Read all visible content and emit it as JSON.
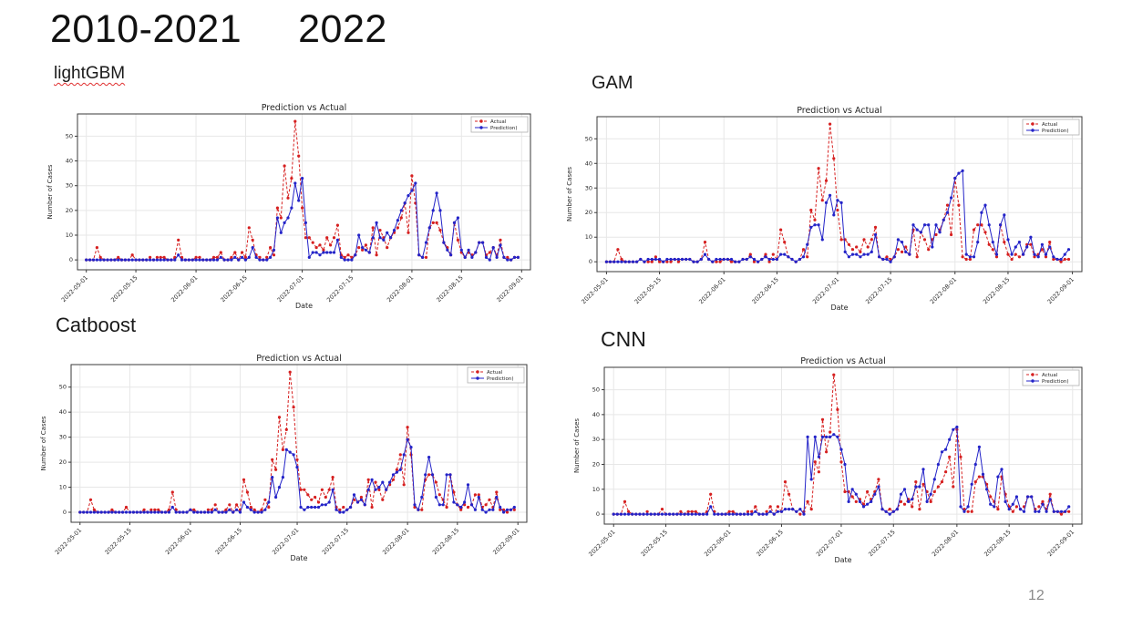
{
  "header": {
    "period_label": "2010-2021",
    "year_label": "2022"
  },
  "footer": {
    "page_number": "12"
  },
  "chart_data": {
    "type": "line",
    "title": "Prediction vs Actual",
    "xlabel": "Date",
    "ylabel": "Number of Cases",
    "grid": true,
    "legend_position": "upper right",
    "ylim": [
      -4,
      59
    ],
    "yticks": [
      0,
      10,
      20,
      30,
      40,
      50
    ],
    "x_tick_labels": [
      "2022-05-01",
      "2022-05-15",
      "2022-06-01",
      "2022-06-15",
      "2022-07-01",
      "2022-07-15",
      "2022-08-01",
      "2022-08-15",
      "2022-09-01"
    ],
    "x_tick_positions": [
      0,
      14,
      31,
      45,
      61,
      75,
      92,
      106,
      123
    ],
    "x_range_days": [
      -2.5,
      125.5
    ],
    "series_legend": [
      {
        "name": "Actual",
        "color": "#d62020",
        "line": "dashed",
        "marker": "circle"
      },
      {
        "name": "Prediction)",
        "color": "#2323c8",
        "line": "solid",
        "marker": "circle"
      }
    ],
    "actual": [
      0,
      0,
      0,
      5,
      1,
      0,
      0,
      0,
      0,
      1,
      0,
      0,
      0,
      2,
      0,
      0,
      0,
      0,
      1,
      0,
      1,
      1,
      1,
      0,
      0,
      1,
      8,
      1,
      0,
      0,
      0,
      1,
      1,
      0,
      0,
      0,
      1,
      1,
      3,
      0,
      0,
      1,
      3,
      0,
      3,
      1,
      13,
      8,
      2,
      1,
      0,
      1,
      5,
      2,
      21,
      17,
      38,
      25,
      33,
      56,
      42,
      21,
      9,
      9,
      7,
      5,
      6,
      4,
      9,
      6,
      9,
      14,
      2,
      1,
      2,
      1,
      2,
      5,
      4,
      6,
      3,
      13,
      2,
      12,
      9,
      5,
      9,
      11,
      13,
      17,
      23,
      11,
      34,
      23,
      2,
      1,
      1,
      13,
      15,
      15,
      12,
      7,
      5,
      2,
      15,
      8,
      3,
      1,
      3,
      2,
      3,
      7,
      7,
      2,
      3,
      5,
      2,
      8,
      1,
      1,
      0,
      1,
      1
    ],
    "panels": [
      {
        "label": "lightGBM",
        "prediction": [
          0,
          0,
          0,
          0,
          0,
          0,
          0,
          0,
          0,
          0,
          0,
          0,
          0,
          0,
          0,
          0,
          0,
          0,
          0,
          0,
          0,
          0,
          0,
          0,
          0,
          0,
          2,
          0,
          0,
          0,
          0,
          0,
          0,
          0,
          0,
          0,
          0,
          0,
          1,
          0,
          0,
          0,
          1,
          0,
          1,
          0,
          1,
          5,
          1,
          0,
          0,
          0,
          1,
          4,
          17,
          11,
          15,
          17,
          21,
          31,
          24,
          33,
          15,
          1,
          3,
          3,
          2,
          3,
          3,
          3,
          3,
          8,
          1,
          0,
          0,
          0,
          2,
          10,
          5,
          4,
          3,
          9,
          15,
          9,
          8,
          11,
          9,
          12,
          16,
          20,
          23,
          26,
          28,
          31,
          2,
          1,
          7,
          13,
          20,
          27,
          20,
          7,
          4,
          2,
          15,
          17,
          4,
          1,
          4,
          1,
          3,
          7,
          7,
          1,
          0,
          5,
          1,
          6,
          1,
          0,
          0,
          1,
          1
        ]
      },
      {
        "label": "GAM",
        "prediction": [
          0,
          0,
          0,
          0,
          0,
          0,
          0,
          0,
          0,
          1,
          0,
          1,
          1,
          1,
          1,
          0,
          1,
          1,
          1,
          1,
          1,
          1,
          1,
          0,
          0,
          1,
          3,
          1,
          0,
          1,
          1,
          1,
          1,
          1,
          0,
          0,
          1,
          1,
          2,
          1,
          0,
          1,
          2,
          1,
          1,
          1,
          3,
          3,
          2,
          1,
          0,
          1,
          2,
          7,
          14,
          15,
          15,
          9,
          24,
          27,
          19,
          25,
          24,
          4,
          2,
          3,
          3,
          2,
          3,
          3,
          4,
          11,
          2,
          1,
          1,
          0,
          2,
          9,
          8,
          4,
          3,
          15,
          13,
          12,
          15,
          15,
          6,
          15,
          12,
          17,
          20,
          26,
          34,
          36,
          37,
          3,
          2,
          2,
          8,
          20,
          23,
          15,
          8,
          3,
          15,
          19,
          9,
          3,
          6,
          8,
          3,
          6,
          10,
          3,
          2,
          7,
          3,
          6,
          2,
          1,
          1,
          3,
          5
        ]
      },
      {
        "label": "Catboost",
        "prediction": [
          0,
          0,
          0,
          0,
          0,
          0,
          0,
          0,
          0,
          0,
          0,
          0,
          0,
          0,
          0,
          0,
          0,
          0,
          0,
          0,
          0,
          0,
          0,
          0,
          0,
          0,
          2,
          0,
          0,
          0,
          0,
          1,
          0,
          0,
          0,
          0,
          0,
          0,
          1,
          0,
          0,
          0,
          1,
          0,
          1,
          0,
          4,
          2,
          1,
          0,
          0,
          0,
          1,
          4,
          14,
          6,
          10,
          14,
          25,
          24,
          23,
          18,
          2,
          1,
          2,
          2,
          2,
          2,
          3,
          3,
          4,
          9,
          1,
          0,
          0,
          1,
          2,
          7,
          4,
          5,
          3,
          9,
          13,
          9,
          10,
          12,
          9,
          12,
          15,
          16,
          17,
          23,
          29,
          26,
          3,
          1,
          6,
          15,
          22,
          15,
          6,
          3,
          3,
          15,
          15,
          4,
          3,
          2,
          4,
          11,
          3,
          1,
          6,
          1,
          0,
          1,
          1,
          6,
          2,
          0,
          1,
          1,
          2
        ]
      },
      {
        "label": "CNN",
        "prediction": [
          0,
          0,
          0,
          0,
          0,
          0,
          0,
          0,
          0,
          0,
          0,
          0,
          0,
          0,
          0,
          0,
          0,
          0,
          0,
          0,
          0,
          0,
          0,
          0,
          0,
          0,
          3,
          0,
          0,
          0,
          0,
          0,
          0,
          0,
          0,
          0,
          0,
          0,
          1,
          0,
          0,
          0,
          1,
          0,
          1,
          1,
          2,
          2,
          2,
          1,
          2,
          0,
          31,
          14,
          31,
          23,
          31,
          31,
          31,
          32,
          31,
          26,
          20,
          5,
          10,
          8,
          5,
          3,
          4,
          5,
          8,
          11,
          2,
          1,
          0,
          1,
          2,
          8,
          10,
          5,
          6,
          11,
          11,
          18,
          5,
          8,
          14,
          20,
          25,
          26,
          30,
          34,
          35,
          3,
          1,
          3,
          12,
          20,
          27,
          16,
          10,
          4,
          3,
          15,
          18,
          5,
          2,
          4,
          7,
          2,
          1,
          7,
          7,
          1,
          1,
          4,
          1,
          6,
          1,
          1,
          1,
          1,
          3
        ]
      }
    ]
  }
}
